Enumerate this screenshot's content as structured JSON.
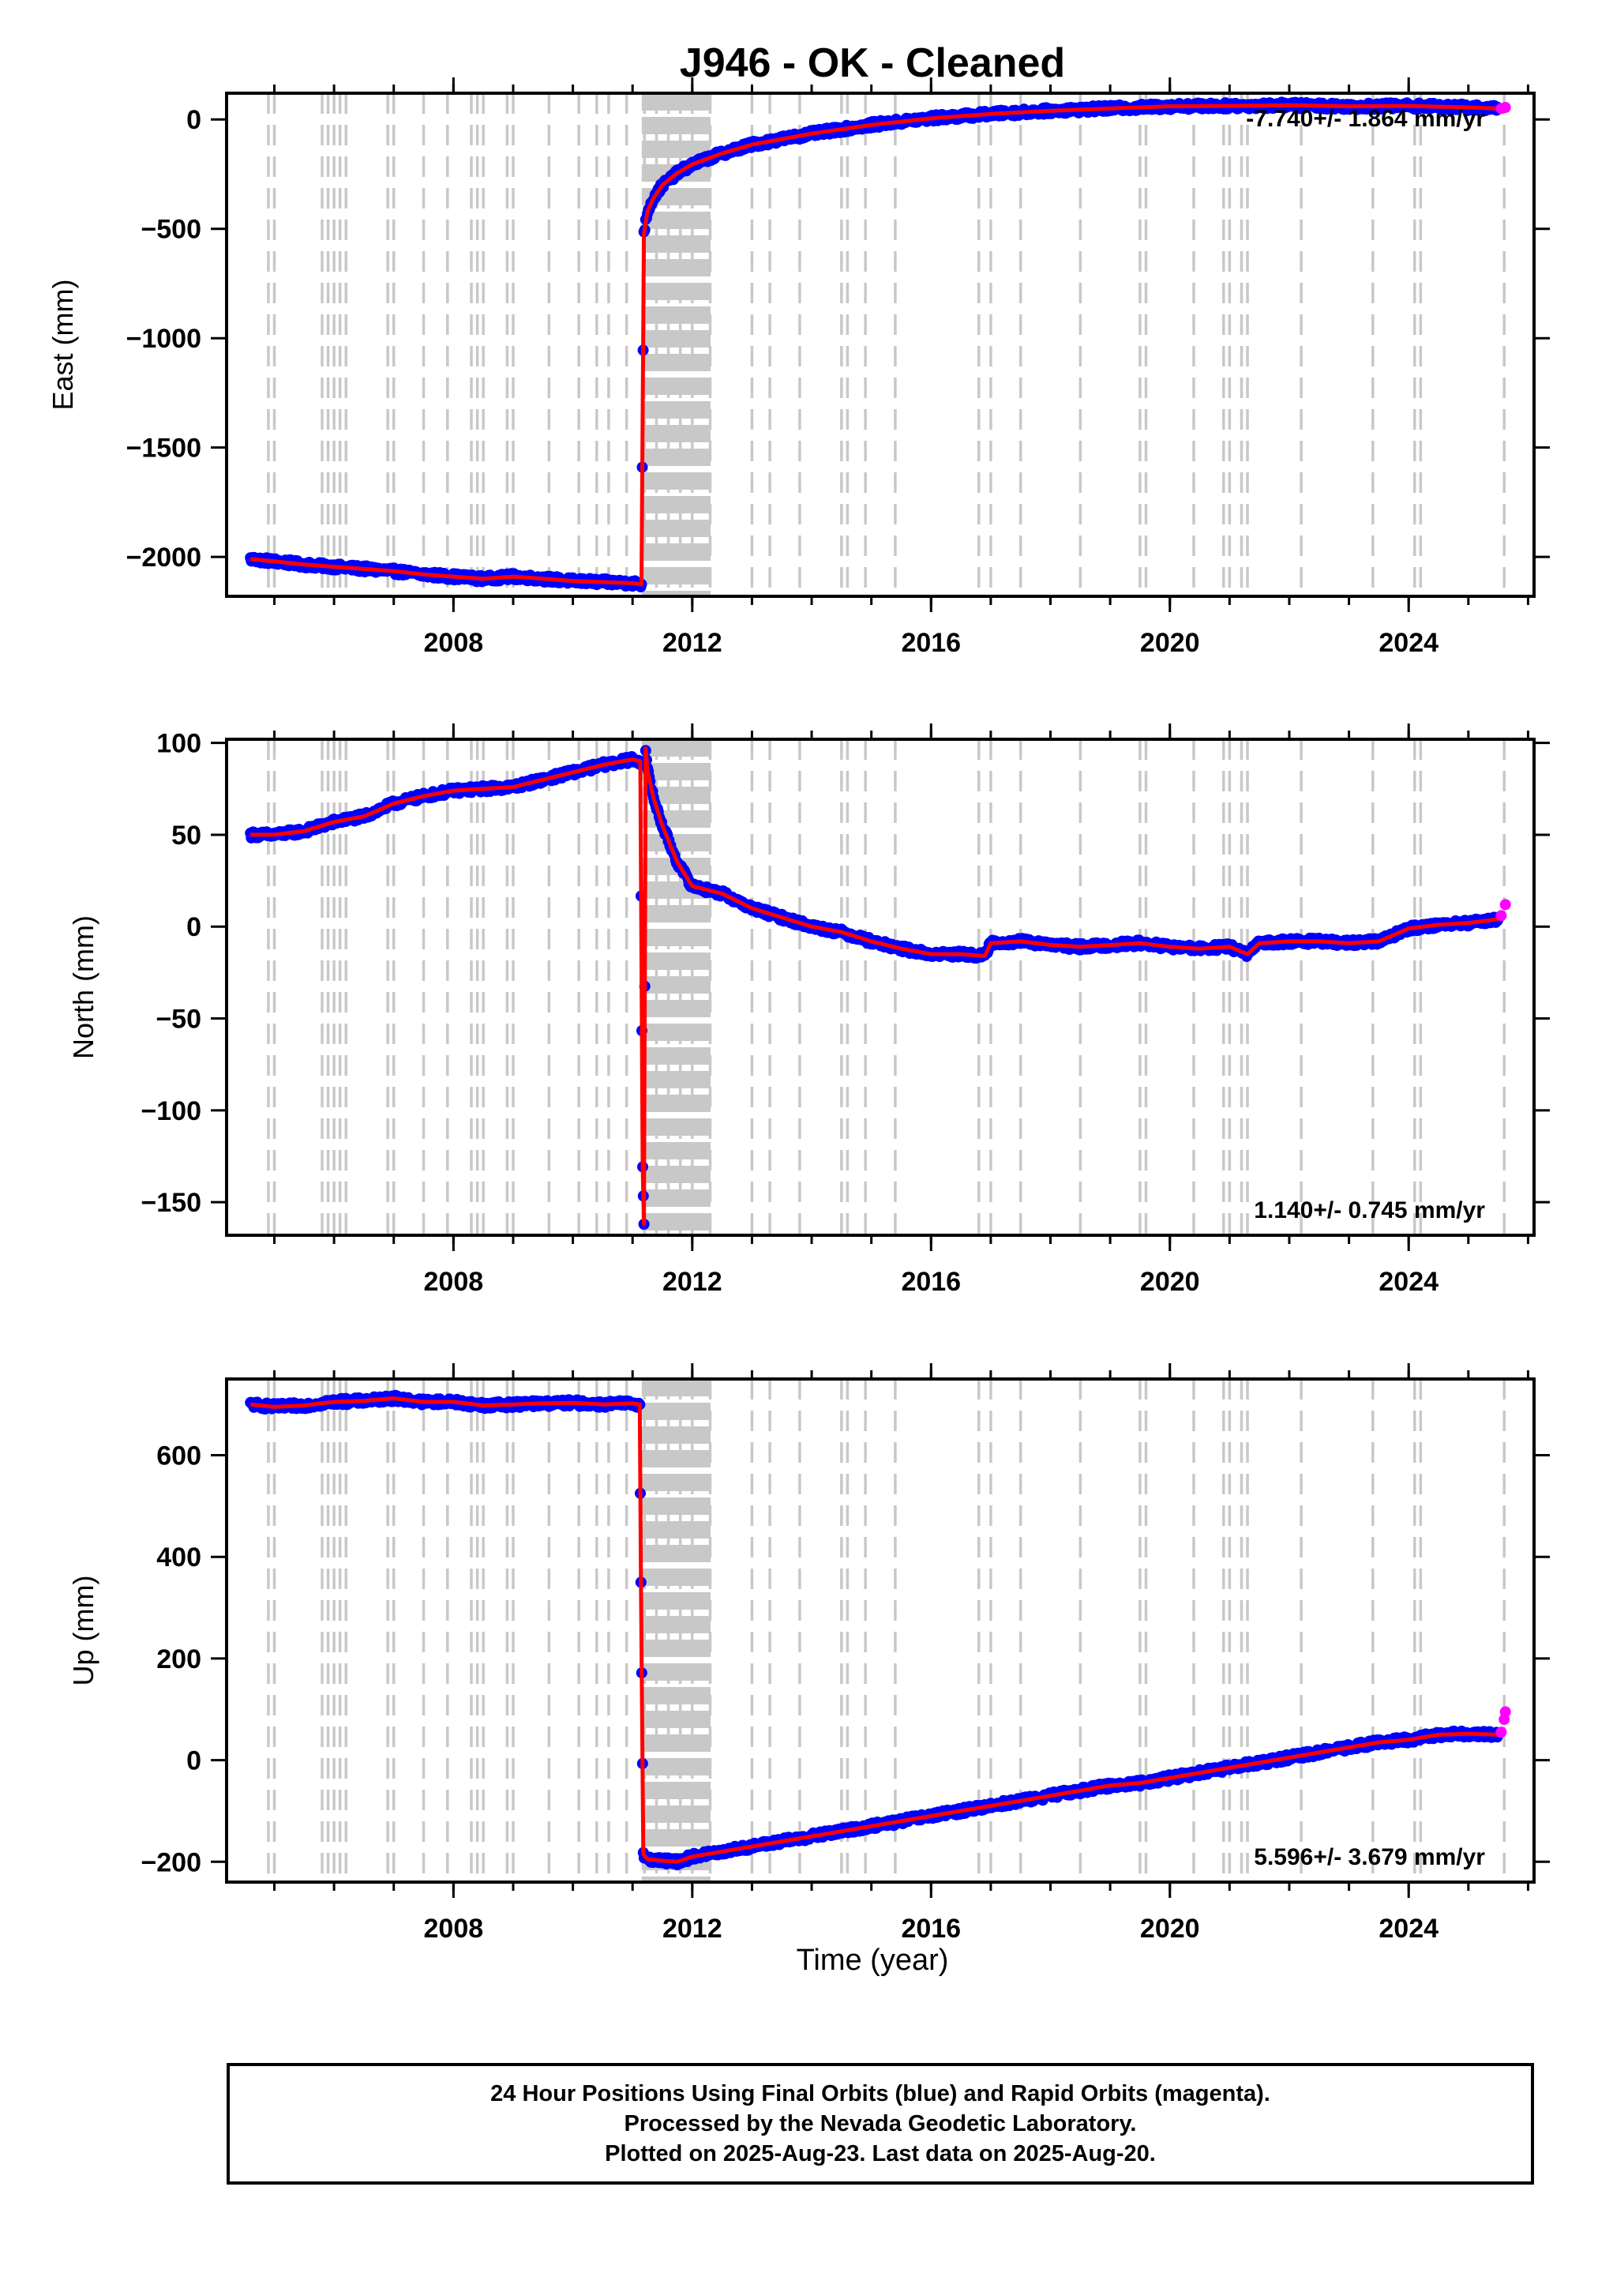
{
  "title": "J946  - OK - Cleaned",
  "xlabel": "Time (year)",
  "footer": {
    "line1": "24 Hour Positions Using Final Orbits (blue) and Rapid Orbits (magenta).",
    "line2": "Processed by the Nevada Geodetic Laboratory.",
    "line3": "Plotted on 2025-Aug-23. Last data on 2025-Aug-20."
  },
  "colors": {
    "final_orbits": "#0000ff",
    "rapid_orbits": "#ff00ff",
    "model": "#ff0000",
    "event_lines": "#c8c8c8"
  },
  "chart_data": [
    {
      "type": "scatter",
      "component": "east",
      "ylabel": "East (mm)",
      "rate": "-7.740+/- 1.864 mm/yr",
      "rate_position": "top-right",
      "xlim": [
        2004.2,
        2026.1
      ],
      "ylim": [
        -2180,
        120
      ],
      "xticks": [
        2008,
        2012,
        2016,
        2020,
        2024
      ],
      "yticks": [
        0,
        -500,
        -1000,
        -1500,
        -2000
      ],
      "grid": false,
      "event_lines": [
        2004.9,
        2005.0,
        2005.8,
        2005.9,
        2006.0,
        2006.1,
        2006.2,
        2006.9,
        2007.0,
        2007.5,
        2007.9,
        2008.3,
        2008.4,
        2008.5,
        2008.9,
        2009.0,
        2009.6,
        2010.1,
        2010.4,
        2010.6,
        2010.9,
        2011.2,
        2011.4,
        2011.6,
        2011.8,
        2012.0,
        2012.3,
        2013.0,
        2013.3,
        2013.8,
        2014.5,
        2014.6,
        2014.9,
        2015.4,
        2016.8,
        2017.0,
        2017.5,
        2018.5,
        2019.5,
        2019.6,
        2020.4,
        2020.9,
        2021.0,
        2021.2,
        2021.3,
        2022.2,
        2023.4,
        2024.1,
        2024.2,
        2025.6
      ],
      "event_band": [
        2011.17,
        2012.3
      ],
      "series": [
        {
          "color": "#0000ff",
          "x": [
            2004.6,
            2005.0,
            2005.5,
            2006.0,
            2006.5,
            2007.0,
            2007.5,
            2008.0,
            2008.5,
            2009.0,
            2009.5,
            2010.0,
            2010.5,
            2011.0,
            2011.15,
            2011.19,
            2011.25,
            2011.35,
            2011.5,
            2011.75,
            2012.0,
            2012.5,
            2013.0,
            2014.0,
            2015.0,
            2016.0,
            2017.0,
            2018.0,
            2019.0,
            2020.0,
            2021.0,
            2022.0,
            2023.0,
            2024.0,
            2025.0,
            2025.5
          ],
          "y": [
            -2010,
            -2020,
            -2035,
            -2045,
            -2055,
            -2065,
            -2080,
            -2090,
            -2100,
            -2090,
            -2100,
            -2110,
            -2115,
            -2120,
            -2125,
            -520,
            -420,
            -360,
            -300,
            -245,
            -205,
            -155,
            -115,
            -65,
            -25,
            5,
            25,
            40,
            50,
            60,
            62,
            65,
            60,
            62,
            55,
            50
          ]
        },
        {
          "color": "#ff00ff",
          "x": [
            2025.55,
            2025.62
          ],
          "y": [
            50,
            55
          ]
        }
      ]
    },
    {
      "type": "scatter",
      "component": "north",
      "ylabel": "North (mm)",
      "rate": "1.140+/- 0.745 mm/yr",
      "rate_position": "bottom-right",
      "xlim": [
        2004.2,
        2026.1
      ],
      "ylim": [
        -168,
        102
      ],
      "xticks": [
        2008,
        2012,
        2016,
        2020,
        2024
      ],
      "yticks": [
        100,
        50,
        0,
        -50,
        -100,
        -150
      ],
      "grid": false,
      "event_lines": [
        2004.9,
        2005.0,
        2005.8,
        2005.9,
        2006.0,
        2006.1,
        2006.2,
        2006.9,
        2007.0,
        2007.5,
        2007.9,
        2008.3,
        2008.4,
        2008.5,
        2008.9,
        2009.0,
        2009.6,
        2010.1,
        2010.4,
        2010.6,
        2010.9,
        2011.2,
        2011.4,
        2011.6,
        2011.8,
        2012.0,
        2012.3,
        2013.0,
        2013.3,
        2013.8,
        2014.5,
        2014.6,
        2014.9,
        2015.4,
        2016.8,
        2017.0,
        2017.5,
        2018.5,
        2019.5,
        2019.6,
        2020.4,
        2020.9,
        2021.0,
        2021.2,
        2021.3,
        2022.2,
        2023.4,
        2024.1,
        2024.2,
        2025.6
      ],
      "event_band": [
        2011.17,
        2012.3
      ],
      "series": [
        {
          "color": "#0000ff",
          "x": [
            2004.6,
            2005.0,
            2005.5,
            2006.0,
            2006.5,
            2007.0,
            2007.5,
            2008.0,
            2008.5,
            2009.0,
            2009.5,
            2010.0,
            2010.5,
            2011.0,
            2011.13,
            2011.17,
            2011.19,
            2011.22,
            2011.25,
            2011.35,
            2011.5,
            2011.75,
            2012.0,
            2012.5,
            2013.0,
            2013.5,
            2014.0,
            2014.5,
            2015.0,
            2015.5,
            2016.0,
            2016.5,
            2016.9,
            2017.0,
            2017.5,
            2018.0,
            2018.5,
            2019.0,
            2019.5,
            2020.0,
            2020.5,
            2021.0,
            2021.3,
            2021.5,
            2022.0,
            2022.5,
            2023.0,
            2023.5,
            2024.0,
            2024.5,
            2025.0,
            2025.5
          ],
          "y": [
            50,
            50,
            52,
            57,
            60,
            67,
            71,
            74,
            75,
            76,
            80,
            84,
            88,
            91,
            90,
            -130,
            -162,
            97,
            85,
            70,
            55,
            35,
            22,
            18,
            10,
            5,
            0,
            -3,
            -8,
            -12,
            -15,
            -15,
            -16,
            -9,
            -8,
            -10,
            -11,
            -10,
            -9,
            -11,
            -12,
            -11,
            -15,
            -9,
            -8,
            -8,
            -9,
            -8,
            -1,
            1,
            2,
            4
          ]
        },
        {
          "color": "#ff00ff",
          "x": [
            2025.55,
            2025.62
          ],
          "y": [
            6,
            12
          ]
        }
      ]
    },
    {
      "type": "scatter",
      "component": "up",
      "ylabel": "Up (mm)",
      "rate": "5.596+/- 3.679 mm/yr",
      "rate_position": "bottom-right",
      "xlim": [
        2004.2,
        2026.1
      ],
      "ylim": [
        -240,
        750
      ],
      "xticks": [
        2008,
        2012,
        2016,
        2020,
        2024
      ],
      "yticks": [
        600,
        400,
        200,
        0,
        -200
      ],
      "grid": false,
      "event_lines": [
        2004.9,
        2005.0,
        2005.8,
        2005.9,
        2006.0,
        2006.1,
        2006.2,
        2006.9,
        2007.0,
        2007.5,
        2007.9,
        2008.3,
        2008.4,
        2008.5,
        2008.9,
        2009.0,
        2009.6,
        2010.1,
        2010.4,
        2010.6,
        2010.9,
        2011.2,
        2011.4,
        2011.6,
        2011.8,
        2012.0,
        2012.3,
        2013.0,
        2013.3,
        2013.8,
        2014.5,
        2014.6,
        2014.9,
        2015.4,
        2016.8,
        2017.0,
        2017.5,
        2018.5,
        2019.5,
        2019.6,
        2020.4,
        2020.9,
        2021.0,
        2021.2,
        2021.3,
        2022.2,
        2023.4,
        2024.1,
        2024.2,
        2025.6
      ],
      "event_band": [
        2011.17,
        2012.3
      ],
      "series": [
        {
          "color": "#0000ff",
          "x": [
            2004.6,
            2005.0,
            2005.5,
            2006.0,
            2006.5,
            2007.0,
            2007.5,
            2008.0,
            2008.5,
            2009.0,
            2009.5,
            2010.0,
            2010.5,
            2011.0,
            2011.12,
            2011.14,
            2011.18,
            2011.25,
            2011.5,
            2011.75,
            2012.0,
            2012.5,
            2013.0,
            2013.5,
            2014.0,
            2014.5,
            2015.0,
            2015.5,
            2016.0,
            2016.5,
            2017.0,
            2017.5,
            2018.0,
            2018.5,
            2019.0,
            2019.5,
            2020.0,
            2020.5,
            2021.0,
            2021.5,
            2022.0,
            2022.5,
            2023.0,
            2023.5,
            2024.0,
            2024.5,
            2025.0,
            2025.5
          ],
          "y": [
            700,
            695,
            698,
            705,
            707,
            712,
            705,
            705,
            698,
            700,
            702,
            703,
            700,
            702,
            700,
            350,
            -185,
            -195,
            -198,
            -200,
            -190,
            -180,
            -170,
            -160,
            -150,
            -140,
            -130,
            -120,
            -110,
            -100,
            -90,
            -80,
            -70,
            -60,
            -50,
            -45,
            -35,
            -25,
            -15,
            -5,
            5,
            15,
            25,
            35,
            40,
            50,
            52,
            50
          ]
        },
        {
          "color": "#ff00ff",
          "x": [
            2025.55,
            2025.6,
            2025.62
          ],
          "y": [
            55,
            80,
            95
          ]
        }
      ]
    }
  ]
}
